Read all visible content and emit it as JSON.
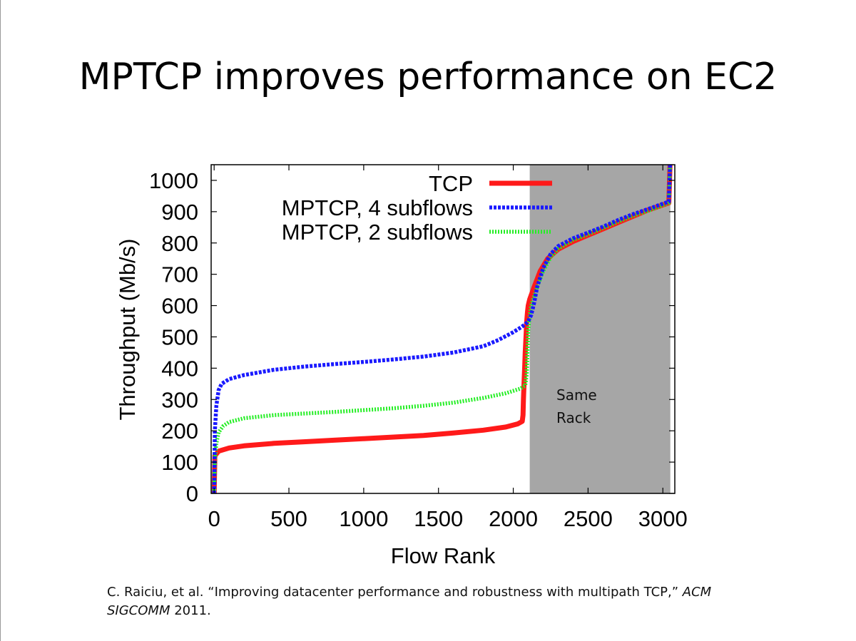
{
  "slide": {
    "title": "MPTCP improves performance on EC2"
  },
  "citation": {
    "authors": "C. Raiciu, et al.",
    "paper_title": "“Improving datacenter performance and robustness with multipath TCP,”",
    "venue_part1": "ACM",
    "venue_part2": "SIGCOMM",
    "year": "2011."
  },
  "chart_data": {
    "type": "line",
    "title": "",
    "xlabel": "Flow Rank",
    "ylabel": "Throughput (Mb/s)",
    "xlim": [
      -20,
      3080
    ],
    "ylim": [
      0,
      1050
    ],
    "x_ticks": [
      0,
      500,
      1000,
      1500,
      2000,
      2500,
      3000
    ],
    "y_ticks": [
      0,
      100,
      200,
      300,
      400,
      500,
      600,
      700,
      800,
      900,
      1000
    ],
    "legend_position": "top-right",
    "grid": false,
    "shaded_region": {
      "x_from": 2110,
      "x_to": 3050,
      "color": "#a6a6a6",
      "label_lines": [
        "Same",
        "Rack"
      ]
    },
    "series": [
      {
        "name": "TCP",
        "color": "#ff1a1a",
        "style": "solid",
        "points": [
          [
            0,
            0
          ],
          [
            5,
            120
          ],
          [
            30,
            135
          ],
          [
            100,
            145
          ],
          [
            200,
            152
          ],
          [
            400,
            160
          ],
          [
            600,
            165
          ],
          [
            800,
            170
          ],
          [
            1000,
            175
          ],
          [
            1200,
            180
          ],
          [
            1400,
            185
          ],
          [
            1600,
            193
          ],
          [
            1800,
            202
          ],
          [
            1950,
            212
          ],
          [
            2030,
            222
          ],
          [
            2060,
            230
          ],
          [
            2065,
            250
          ],
          [
            2068,
            300
          ],
          [
            2072,
            350
          ],
          [
            2076,
            400
          ],
          [
            2080,
            450
          ],
          [
            2085,
            500
          ],
          [
            2090,
            550
          ],
          [
            2095,
            580
          ],
          [
            2100,
            600
          ],
          [
            2110,
            620
          ],
          [
            2140,
            660
          ],
          [
            2180,
            710
          ],
          [
            2230,
            750
          ],
          [
            2300,
            780
          ],
          [
            2400,
            805
          ],
          [
            2500,
            825
          ],
          [
            2600,
            845
          ],
          [
            2700,
            865
          ],
          [
            2800,
            885
          ],
          [
            2900,
            905
          ],
          [
            2980,
            918
          ],
          [
            3040,
            928
          ],
          [
            3048,
            1050
          ]
        ]
      },
      {
        "name": "MPTCP, 4 subflows",
        "color": "#1a1aff",
        "style": "dashed",
        "points": [
          [
            0,
            0
          ],
          [
            5,
            200
          ],
          [
            15,
            280
          ],
          [
            30,
            330
          ],
          [
            50,
            350
          ],
          [
            100,
            365
          ],
          [
            200,
            378
          ],
          [
            400,
            395
          ],
          [
            600,
            405
          ],
          [
            800,
            413
          ],
          [
            1000,
            420
          ],
          [
            1200,
            428
          ],
          [
            1400,
            437
          ],
          [
            1600,
            450
          ],
          [
            1800,
            470
          ],
          [
            1900,
            490
          ],
          [
            2000,
            515
          ],
          [
            2050,
            530
          ],
          [
            2080,
            540
          ],
          [
            2100,
            550
          ],
          [
            2120,
            570
          ],
          [
            2140,
            610
          ],
          [
            2160,
            660
          ],
          [
            2200,
            720
          ],
          [
            2250,
            765
          ],
          [
            2300,
            790
          ],
          [
            2400,
            815
          ],
          [
            2500,
            833
          ],
          [
            2600,
            852
          ],
          [
            2700,
            873
          ],
          [
            2800,
            892
          ],
          [
            2900,
            908
          ],
          [
            2980,
            922
          ],
          [
            3040,
            932
          ],
          [
            3048,
            1050
          ]
        ]
      },
      {
        "name": "MPTCP, 2 subflows",
        "color": "#26ee26",
        "style": "dotted",
        "points": [
          [
            0,
            0
          ],
          [
            5,
            100
          ],
          [
            15,
            160
          ],
          [
            30,
            195
          ],
          [
            60,
            215
          ],
          [
            100,
            228
          ],
          [
            200,
            240
          ],
          [
            400,
            250
          ],
          [
            600,
            255
          ],
          [
            800,
            260
          ],
          [
            1000,
            266
          ],
          [
            1200,
            272
          ],
          [
            1400,
            280
          ],
          [
            1600,
            290
          ],
          [
            1800,
            305
          ],
          [
            1950,
            320
          ],
          [
            2050,
            335
          ],
          [
            2080,
            345
          ],
          [
            2090,
            380
          ],
          [
            2093,
            420
          ],
          [
            2096,
            470
          ],
          [
            2100,
            520
          ],
          [
            2108,
            560
          ],
          [
            2120,
            600
          ],
          [
            2160,
            660
          ],
          [
            2200,
            710
          ],
          [
            2250,
            755
          ],
          [
            2300,
            782
          ],
          [
            2400,
            810
          ],
          [
            2500,
            828
          ],
          [
            2600,
            848
          ],
          [
            2700,
            868
          ],
          [
            2800,
            887
          ],
          [
            2900,
            903
          ],
          [
            2980,
            917
          ],
          [
            3040,
            928
          ],
          [
            3048,
            1050
          ]
        ]
      }
    ]
  }
}
